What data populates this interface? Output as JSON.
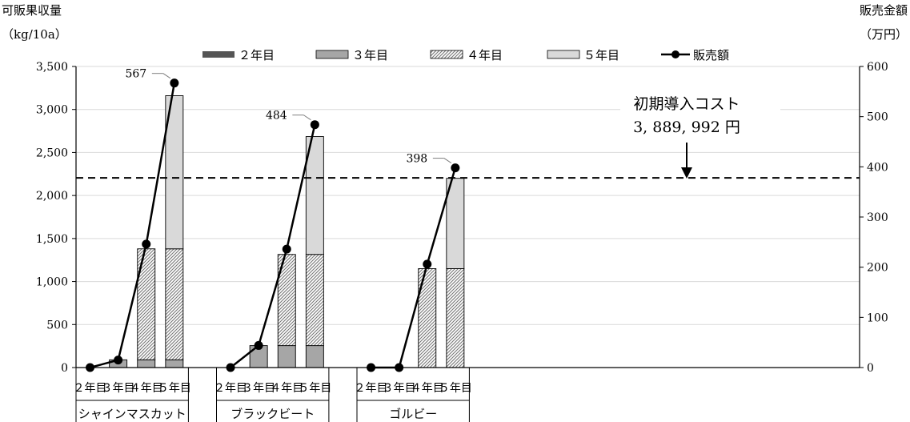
{
  "chart_data": {
    "type": "bar",
    "left_axis_title_line1": "可販果収量",
    "left_axis_title_line2": "（kg/10a）",
    "right_axis_title_line1": "販売金額",
    "right_axis_title_line2": "（万円）",
    "ylim_left": [
      0,
      3500
    ],
    "yticks_left": [
      "0",
      "500",
      "1,000",
      "1,500",
      "2,000",
      "2,500",
      "3,000",
      "3,500"
    ],
    "ylim_right": [
      0,
      600
    ],
    "yticks_right": [
      "0",
      "100",
      "200",
      "300",
      "400",
      "500",
      "600"
    ],
    "grid": true,
    "legend_position": "top",
    "legend": [
      "２年目",
      "３年目",
      "４年目",
      "５年目",
      "販売額"
    ],
    "colors": {
      "year2": "#555555",
      "year3": "#a6a6a6",
      "year4_hatch": "#777777",
      "year5": "#d9d9d9",
      "line": "#000000",
      "dashed": "#000000",
      "grid": "#d9d9d9"
    },
    "categories": [
      "２年目",
      "３年目",
      "４年目",
      "５年目"
    ],
    "groups": [
      {
        "name": "シャインマスカット",
        "stacks": {
          "year2": [
            0,
            0,
            0,
            0
          ],
          "year3": [
            0,
            90,
            90,
            90
          ],
          "year4": [
            0,
            0,
            1290,
            1290
          ],
          "year5": [
            0,
            0,
            0,
            1780
          ]
        },
        "sales": [
          0,
          15,
          246,
          567
        ],
        "sales_label": "567"
      },
      {
        "name": "ブラックビート",
        "stacks": {
          "year2": [
            0,
            0,
            0,
            0
          ],
          "year3": [
            0,
            255,
            255,
            255
          ],
          "year4": [
            0,
            0,
            1060,
            1060
          ],
          "year5": [
            0,
            0,
            0,
            1370
          ]
        },
        "sales": [
          0,
          44,
          236,
          484
        ],
        "sales_label": "484"
      },
      {
        "name": "ゴルビー",
        "stacks": {
          "year2": [
            0,
            0,
            0,
            0
          ],
          "year3": [
            0,
            0,
            0,
            0
          ],
          "year4": [
            0,
            0,
            1150,
            1150
          ],
          "year5": [
            0,
            0,
            0,
            1050
          ]
        },
        "sales": [
          0,
          0,
          206,
          398
        ],
        "sales_label": "398"
      }
    ],
    "cost_line_value": 2205,
    "annotation_line1": "初期導入コスト",
    "annotation_line2": "3, 889, 992 円"
  }
}
